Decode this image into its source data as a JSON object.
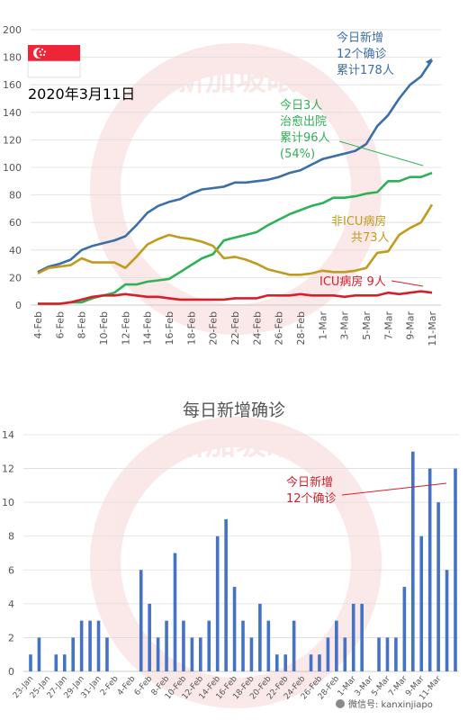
{
  "date_label": "2020年3月11日",
  "watermark": "新加坡眼",
  "footer": {
    "text": "微信号: kanxinjiapo"
  },
  "colors": {
    "total": "#3c6ea8",
    "discharged": "#2eb157",
    "non_icu": "#c19b1f",
    "icu": "#d5202c",
    "bar": "#4472c4",
    "flag_red": "#ee2536",
    "watermark": "#e05050"
  },
  "chart_data": [
    {
      "type": "line",
      "ylim": [
        0,
        200
      ],
      "yticks": [
        0,
        20,
        40,
        60,
        80,
        100,
        120,
        140,
        160,
        180,
        200
      ],
      "x": [
        "4-Feb",
        "5-Feb",
        "6-Feb",
        "7-Feb",
        "8-Feb",
        "9-Feb",
        "10-Feb",
        "11-Feb",
        "12-Feb",
        "13-Feb",
        "14-Feb",
        "15-Feb",
        "16-Feb",
        "17-Feb",
        "18-Feb",
        "19-Feb",
        "20-Feb",
        "21-Feb",
        "22-Feb",
        "23-Feb",
        "24-Feb",
        "25-Feb",
        "26-Feb",
        "27-Feb",
        "28-Feb",
        "29-Feb",
        "1-Mar",
        "2-Mar",
        "3-Mar",
        "4-Mar",
        "5-Mar",
        "6-Mar",
        "7-Mar",
        "8-Mar",
        "9-Mar",
        "10-Mar",
        "11-Mar"
      ],
      "xtick_labels": [
        "4-Feb",
        "6-Feb",
        "8-Feb",
        "10-Feb",
        "12-Feb",
        "14-Feb",
        "16-Feb",
        "18-Feb",
        "20-Feb",
        "22-Feb",
        "24-Feb",
        "26-Feb",
        "28-Feb",
        "1-Mar",
        "3-Mar",
        "5-Mar",
        "7-Mar",
        "9-Mar",
        "11-Mar"
      ],
      "series": [
        {
          "key": "total",
          "values": [
            24,
            28,
            30,
            33,
            40,
            43,
            45,
            47,
            50,
            58,
            67,
            72,
            75,
            77,
            81,
            84,
            85,
            86,
            89,
            89,
            90,
            91,
            93,
            96,
            98,
            102,
            106,
            108,
            110,
            112,
            117,
            130,
            138,
            150,
            160,
            166,
            178
          ]
        },
        {
          "key": "discharged",
          "values": [
            1,
            1,
            1,
            2,
            2,
            5,
            7,
            9,
            15,
            15,
            17,
            18,
            19,
            24,
            29,
            34,
            37,
            47,
            49,
            51,
            53,
            58,
            62,
            66,
            69,
            72,
            74,
            78,
            78,
            79,
            81,
            82,
            90,
            90,
            93,
            93,
            96
          ]
        },
        {
          "key": "non_icu",
          "values": [
            23,
            27,
            28,
            29,
            34,
            31,
            31,
            31,
            27,
            35,
            44,
            48,
            51,
            49,
            48,
            46,
            43,
            34,
            35,
            33,
            30,
            26,
            24,
            22,
            22,
            23,
            25,
            24,
            24,
            25,
            27,
            38,
            39,
            51,
            56,
            60,
            73
          ]
        },
        {
          "key": "icu",
          "values": [
            1,
            1,
            1,
            2,
            4,
            6,
            7,
            7,
            8,
            7,
            6,
            6,
            5,
            4,
            4,
            4,
            4,
            4,
            5,
            5,
            5,
            7,
            7,
            7,
            8,
            7,
            7,
            7,
            6,
            7,
            7,
            7,
            9,
            8,
            9,
            10,
            9
          ]
        }
      ],
      "annotations": {
        "total": [
          "今日新增",
          "12个确诊",
          "累计178人"
        ],
        "discharged": [
          "今日3人",
          "治愈出院",
          "累计96人",
          "(54%)"
        ],
        "non_icu": [
          "非ICU病房",
          "共73人"
        ],
        "icu": "ICU病房 9人"
      }
    },
    {
      "type": "bar",
      "title": "每日新增确诊",
      "ylim": [
        0,
        14
      ],
      "yticks": [
        0,
        2,
        4,
        6,
        8,
        10,
        12,
        14
      ],
      "values": [
        1,
        2,
        0,
        1,
        1,
        2,
        3,
        3,
        3,
        2,
        0,
        0,
        0,
        6,
        4,
        2,
        3,
        7,
        3,
        2,
        2,
        3,
        8,
        9,
        5,
        3,
        2,
        4,
        3,
        1,
        1,
        3,
        0,
        1,
        1,
        2,
        3,
        2,
        4,
        4,
        0,
        2,
        2,
        2,
        5,
        13,
        8,
        12,
        10,
        6,
        12
      ],
      "xtick_labels": [
        "23-Jan",
        "25-Jan",
        "27-Jan",
        "29-Jan",
        "31-Jan",
        "2-Feb",
        "4-Feb",
        "6-Feb",
        "8-Feb",
        "10-Feb",
        "12-Feb",
        "14-Feb",
        "16-Feb",
        "18-Feb",
        "20-Feb",
        "22-Feb",
        "24-Feb",
        "26-Feb",
        "28-Feb",
        "1-Mar",
        "3-Mar",
        "5-Mar",
        "7-Mar",
        "9-Mar",
        "11-Mar"
      ],
      "annotation": [
        "今日新增",
        "12个确诊"
      ]
    }
  ]
}
